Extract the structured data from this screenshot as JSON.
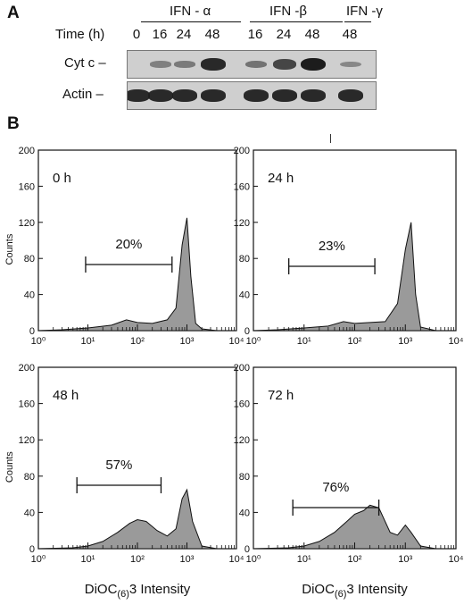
{
  "panel_a": {
    "letter": "A",
    "groups": [
      "IFN - α",
      "IFN -β",
      "IFN -γ"
    ],
    "time_label": "Time (h)",
    "times": [
      "0",
      "16",
      "24",
      "48",
      "16",
      "24",
      "48",
      "48"
    ],
    "rows": [
      {
        "label": "Cyt c –",
        "band_intensity": [
          0.0,
          0.25,
          0.3,
          0.9,
          0.35,
          0.7,
          1.0,
          0.2
        ]
      },
      {
        "label": "Actin –",
        "band_intensity": [
          0.9,
          0.9,
          0.9,
          0.9,
          0.9,
          0.9,
          0.9,
          0.9
        ]
      }
    ]
  },
  "panel_b": {
    "letter": "B",
    "chart_data": [
      {
        "type": "area",
        "title": "0 h",
        "gate_label": "20%",
        "gate_range": [
          9,
          500
        ],
        "ylabel": "Counts",
        "xlabel": "",
        "xscale": "log",
        "xlim": [
          1,
          10000
        ],
        "ylim": [
          0,
          200
        ],
        "yticks": [
          0,
          40,
          80,
          120,
          160,
          200
        ],
        "xtick_labels": [
          "10⁰",
          "10¹",
          "10²",
          "10³",
          "10⁴"
        ],
        "x": [
          1,
          3,
          10,
          30,
          60,
          100,
          200,
          400,
          600,
          800,
          1000,
          1200,
          1500,
          2000,
          4000,
          10000
        ],
        "y": [
          0,
          1,
          3,
          6,
          12,
          9,
          8,
          12,
          25,
          95,
          125,
          60,
          8,
          2,
          0,
          0
        ]
      },
      {
        "type": "area",
        "title": "24 h",
        "gate_label": "23%",
        "gate_range": [
          5,
          250
        ],
        "ylabel": "",
        "xlabel": "",
        "xscale": "log",
        "xlim": [
          1,
          10000
        ],
        "ylim": [
          0,
          200
        ],
        "yticks": [
          0,
          40,
          80,
          120,
          160,
          200
        ],
        "xtick_labels": [
          "10⁰",
          "10¹",
          "10²",
          "10³",
          "10⁴"
        ],
        "x": [
          1,
          3,
          10,
          30,
          60,
          100,
          200,
          400,
          700,
          1000,
          1300,
          1600,
          2000,
          4000,
          10000
        ],
        "y": [
          0,
          1,
          3,
          5,
          10,
          8,
          9,
          10,
          30,
          90,
          120,
          40,
          4,
          0,
          0
        ]
      },
      {
        "type": "area",
        "title": "48 h",
        "gate_label": "57%",
        "gate_range": [
          6,
          300
        ],
        "ylabel": "Counts",
        "xlabel": "DiOC(6)3 Intensity",
        "xscale": "log",
        "xlim": [
          1,
          10000
        ],
        "ylim": [
          0,
          200
        ],
        "yticks": [
          0,
          40,
          80,
          120,
          160,
          200
        ],
        "xtick_labels": [
          "10⁰",
          "10¹",
          "10²",
          "10³",
          "10⁴"
        ],
        "x": [
          1,
          5,
          10,
          20,
          40,
          70,
          100,
          150,
          250,
          400,
          600,
          800,
          1000,
          1300,
          2000,
          4000,
          10000
        ],
        "y": [
          0,
          1,
          3,
          8,
          18,
          28,
          32,
          30,
          20,
          14,
          22,
          55,
          65,
          30,
          3,
          0,
          0
        ]
      },
      {
        "type": "area",
        "title": "72 h",
        "gate_label": "76%",
        "gate_range": [
          6,
          300
        ],
        "ylabel": "",
        "xlabel": "DiOC(6)3 Intensity",
        "xscale": "log",
        "xlim": [
          1,
          10000
        ],
        "ylim": [
          0,
          200
        ],
        "yticks": [
          0,
          40,
          80,
          120,
          160,
          200
        ],
        "xtick_labels": [
          "10⁰",
          "10¹",
          "10²",
          "10³",
          "10⁴"
        ],
        "x": [
          1,
          5,
          10,
          20,
          40,
          70,
          100,
          150,
          200,
          300,
          500,
          700,
          1000,
          1300,
          2000,
          4000,
          10000
        ],
        "y": [
          0,
          1,
          3,
          8,
          18,
          30,
          38,
          42,
          48,
          45,
          18,
          15,
          26,
          18,
          3,
          0,
          0
        ]
      }
    ]
  }
}
